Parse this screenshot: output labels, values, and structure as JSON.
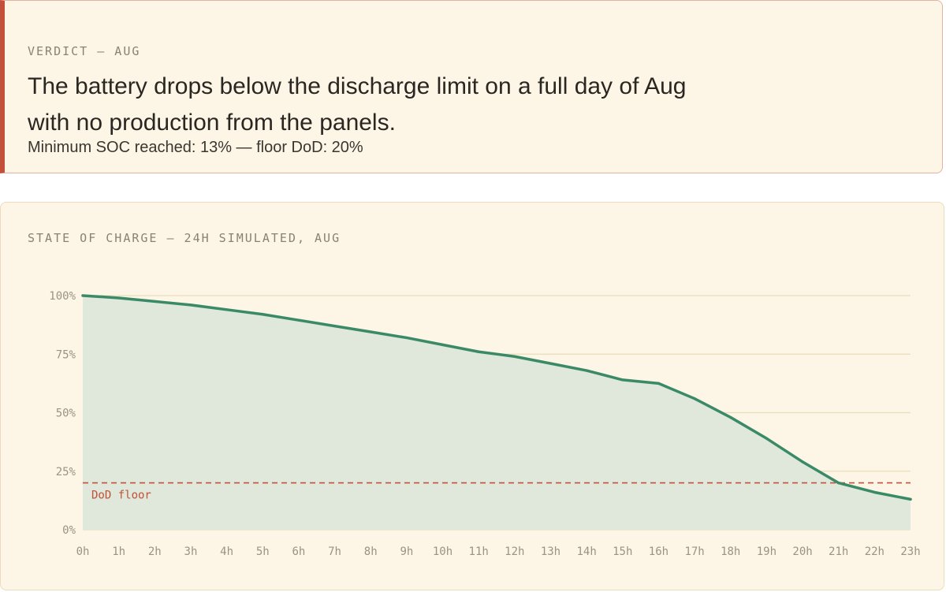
{
  "verdict": {
    "label": "VERDICT — AUG",
    "headline": "The battery drops below the discharge limit on a full day of Aug with no production from the panels.",
    "subline": "Minimum SOC reached: 13% — floor DoD: 20%",
    "accent_color": "#c2503a"
  },
  "chart_data": {
    "type": "area",
    "title": "STATE OF CHARGE — 24H SIMULATED, AUG",
    "xlabel": "",
    "ylabel": "",
    "categories": [
      "0h",
      "1h",
      "2h",
      "3h",
      "4h",
      "5h",
      "6h",
      "7h",
      "8h",
      "9h",
      "10h",
      "11h",
      "12h",
      "13h",
      "14h",
      "15h",
      "16h",
      "17h",
      "18h",
      "19h",
      "20h",
      "21h",
      "22h",
      "23h"
    ],
    "series": [
      {
        "values": [
          100,
          99,
          97.5,
          96,
          94,
          92,
          89.5,
          87,
          84.5,
          82,
          79,
          76,
          74,
          71,
          68,
          64,
          62.5,
          56,
          48,
          39,
          29,
          20,
          16,
          13
        ],
        "color": "#3a8a68",
        "fill_color": "#dfe8da"
      }
    ],
    "y_ticks": [
      "100%",
      "75%",
      "50%",
      "25%",
      "0%"
    ],
    "ylim": [
      0,
      100
    ],
    "grid": true,
    "reference_line": {
      "label": "DoD floor",
      "value": 20,
      "color": "#c2503a"
    }
  }
}
